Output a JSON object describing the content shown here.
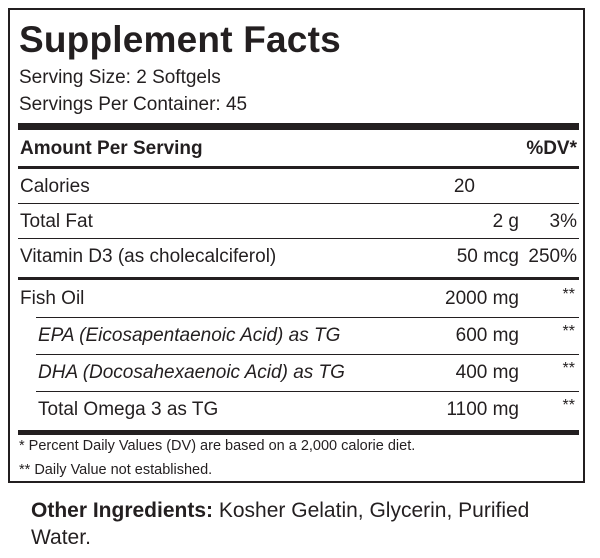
{
  "title": "Supplement Facts",
  "serving_size": "Serving Size: 2 Softgels",
  "servings_per_container": "Servings Per Container: 45",
  "header": {
    "amount_label": "Amount Per Serving",
    "dv_label": "%DV*"
  },
  "rows": [
    {
      "label": "Calories",
      "amount": "20",
      "dv": ""
    },
    {
      "label": "Total Fat",
      "amount": "2 g",
      "dv": "3%"
    },
    {
      "label": "Vitamin D3 (as cholecalciferol)",
      "amount": "50 mcg",
      "dv": "250%"
    },
    {
      "label": "Fish Oil",
      "amount": "2000 mg",
      "dv": "**"
    },
    {
      "label": "EPA (Eicosapentaenoic Acid) as TG",
      "amount": "600 mg",
      "dv": "**"
    },
    {
      "label": "DHA (Docosahexaenoic Acid) as TG",
      "amount": "400 mg",
      "dv": "**"
    },
    {
      "label": "Total Omega 3 as TG",
      "amount": "1100 mg",
      "dv": "**"
    }
  ],
  "footnotes": [
    "* Percent Daily Values (DV) are based on a 2,000 calorie diet.",
    "** Daily Value not established."
  ],
  "other_ingredients": {
    "label": "Other Ingredients:",
    "text": "Kosher Gelatin, Glycerin, Purified Water."
  }
}
